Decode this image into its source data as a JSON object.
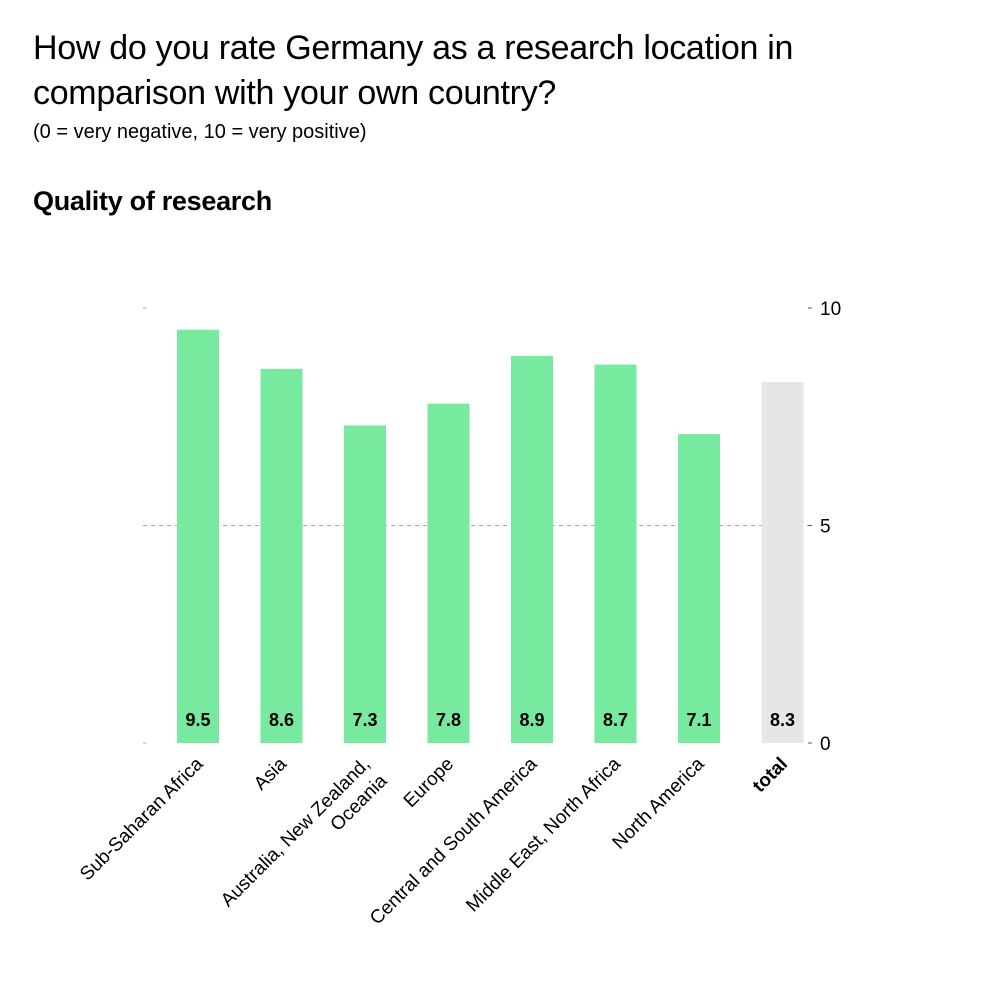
{
  "title": "How do you rate Germany as a research location in comparison with your own country?",
  "subtitle": "(0 = very negative, 10 = very positive)",
  "chart_data": {
    "type": "bar",
    "title": "Quality of research",
    "categories": [
      [
        "Sub-Saharan Africa"
      ],
      [
        "Asia"
      ],
      [
        "Australia, New Zealand,",
        "Oceania"
      ],
      [
        "Europe"
      ],
      [
        "Central and South America"
      ],
      [
        "Middle East, North Africa"
      ],
      [
        "North America"
      ],
      [
        "total"
      ]
    ],
    "values": [
      9.5,
      8.6,
      7.3,
      7.8,
      8.9,
      8.7,
      7.1,
      8.3
    ],
    "value_labels": [
      "9.5",
      "8.6",
      "7.3",
      "7.8",
      "8.9",
      "8.7",
      "7.1",
      "8.3"
    ],
    "highlight_last": true,
    "ylim": [
      0,
      10
    ],
    "yticks": [
      0,
      5,
      10
    ],
    "ytick_labels": [
      "0",
      "5",
      "10"
    ],
    "y_axis_side": "right",
    "gridline_at": 5,
    "colors": {
      "bar": "#77eaa0",
      "total_bar": "#e6e6e6",
      "gridline": "#aaaaaa"
    }
  }
}
